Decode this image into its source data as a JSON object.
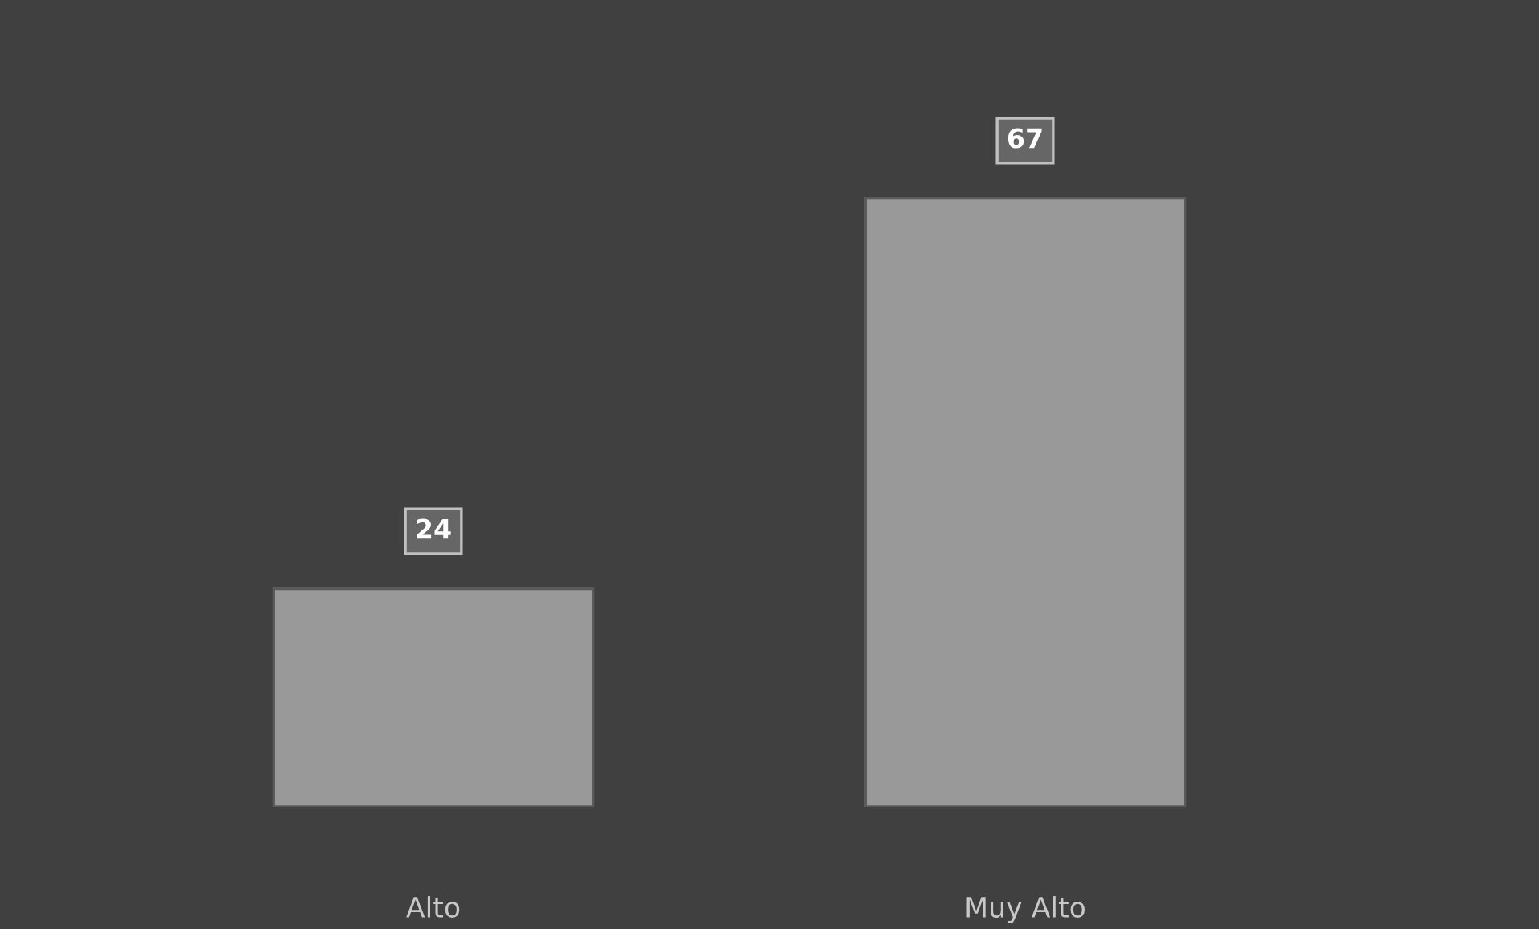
{
  "chart_data": {
    "type": "bar",
    "categories": [
      "Alto",
      "Muy Alto"
    ],
    "values": [
      24,
      67
    ],
    "color": "#999999",
    "data_labels": true
  }
}
